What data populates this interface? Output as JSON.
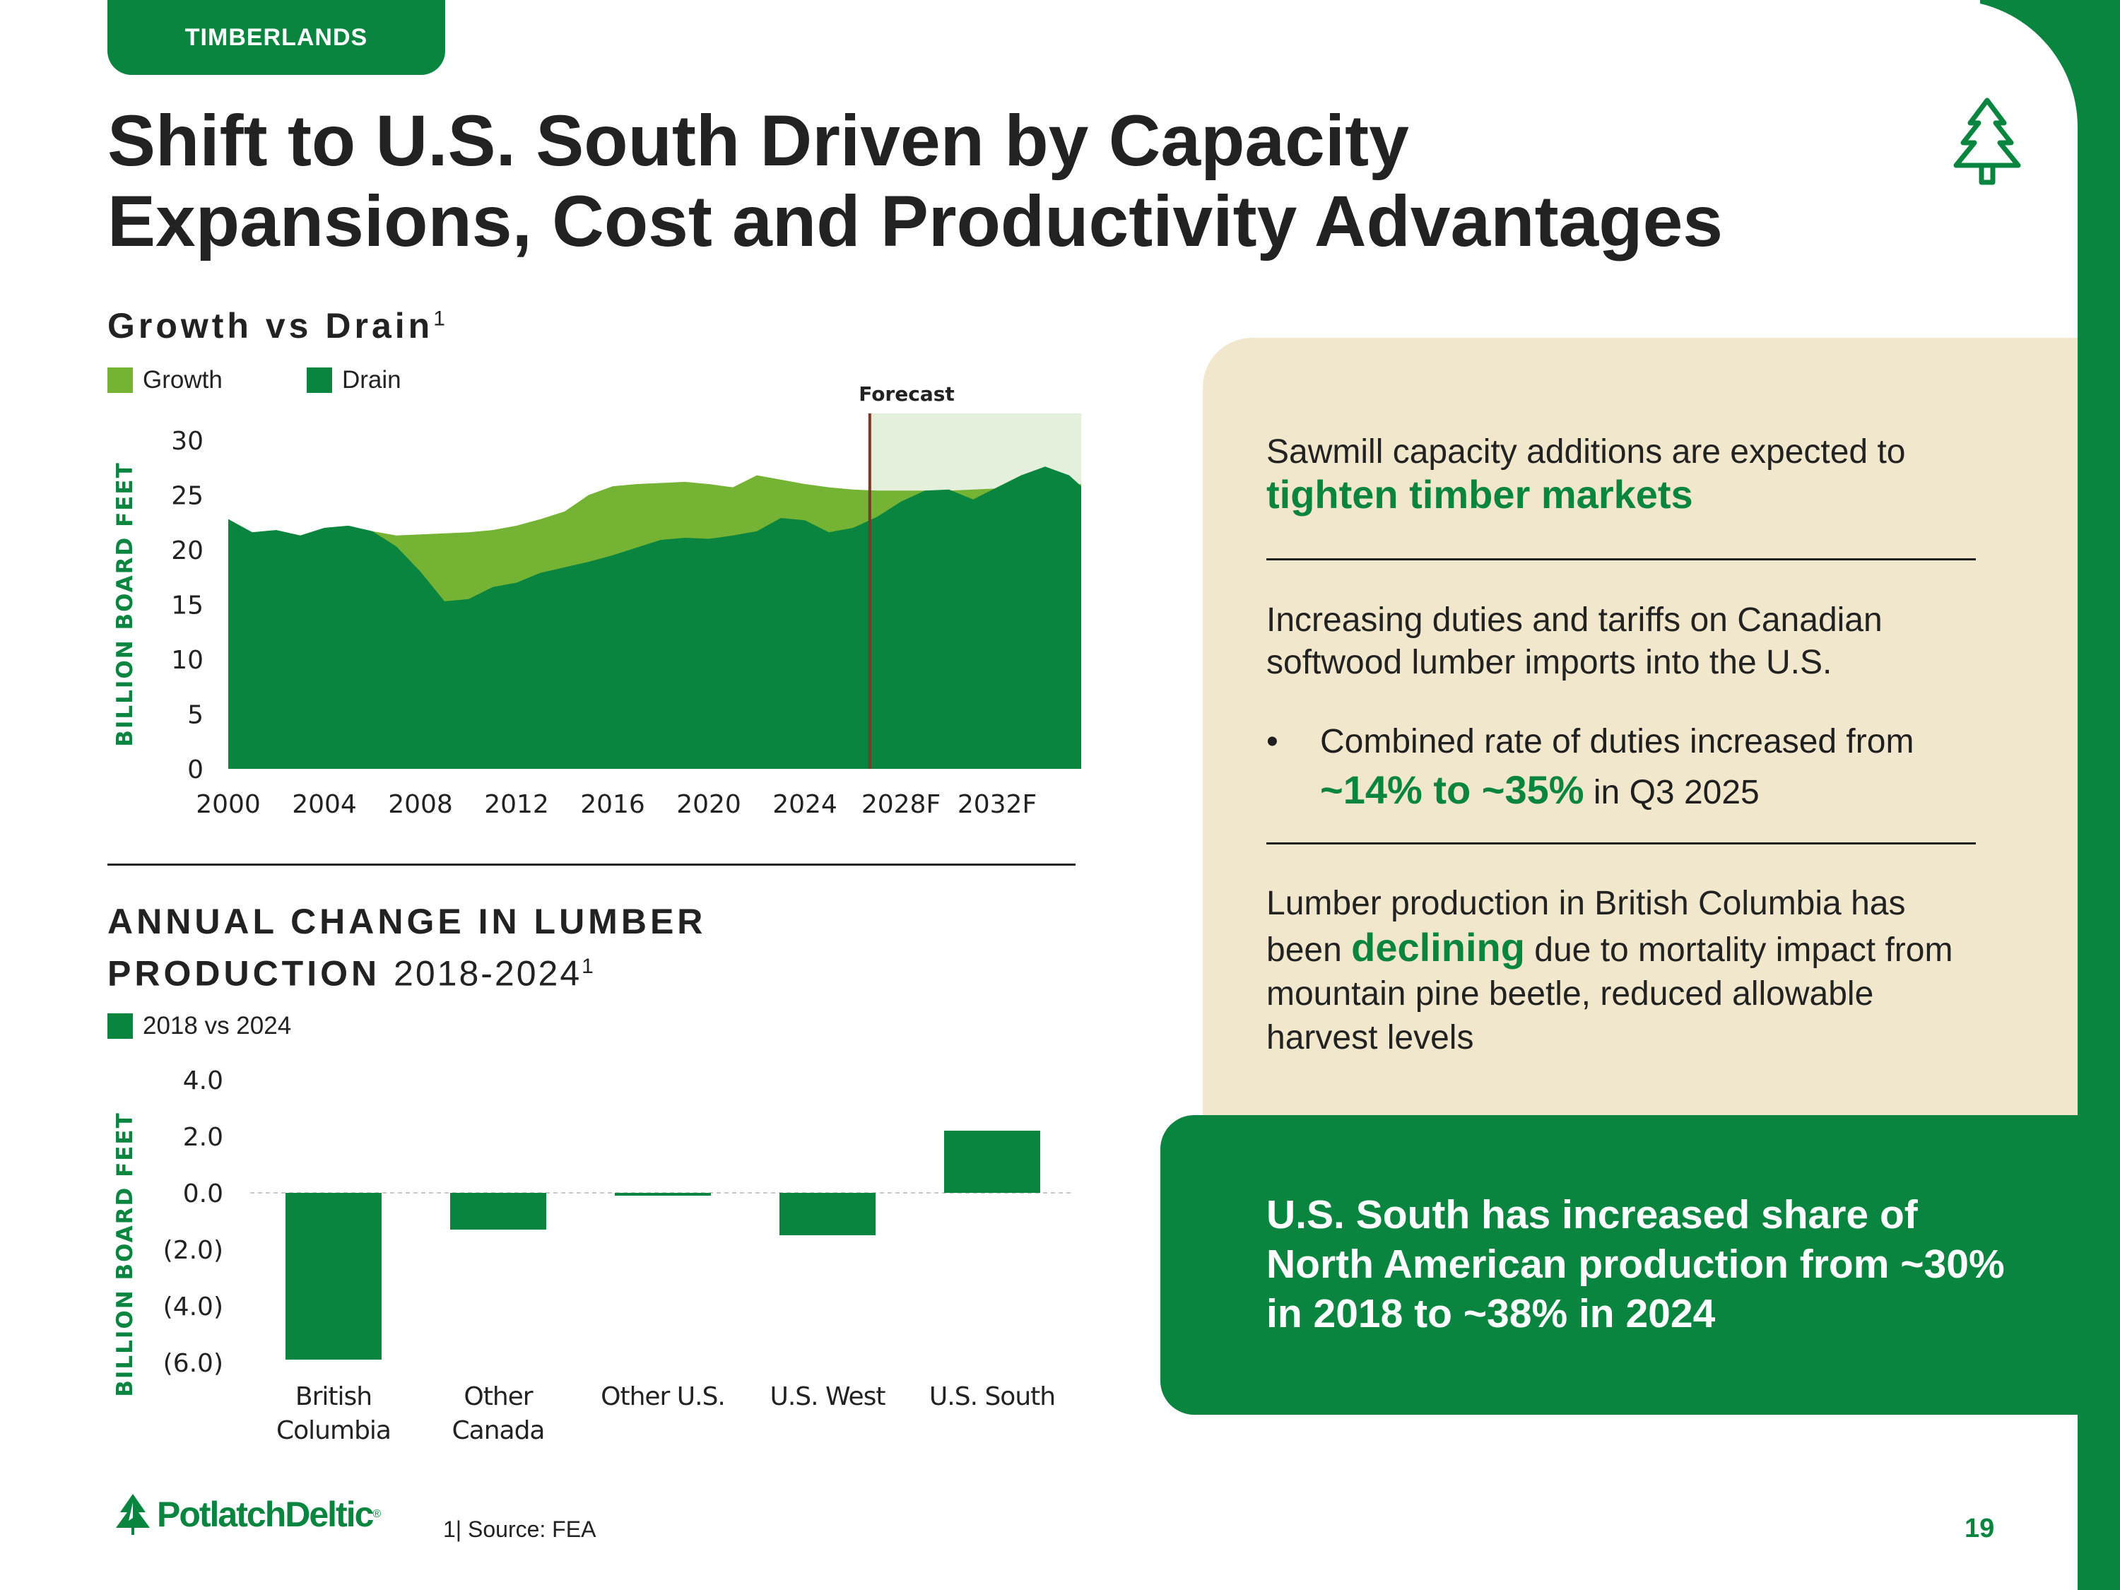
{
  "section_tab": "TIMBERLANDS",
  "title": {
    "line1": "Shift to U.S. South Driven by Capacity",
    "line2": "Expansions, Cost and Productivity Advantages"
  },
  "colors": {
    "growth": "#74b334",
    "drain": "#0a8540",
    "forecast_shade": "#e4efdc",
    "forecast_line": "#7a3a26",
    "panel": "#f1e7cc"
  },
  "chart1": {
    "heading": "Growth vs Drain",
    "heading_sup": "1",
    "legend_growth": "Growth",
    "legend_drain": "Drain",
    "forecast_label": "Forecast",
    "ylabel": "BILLION BOARD FEET"
  },
  "chart2": {
    "heading_line1": "ANNUAL CHANGE IN LUMBER",
    "heading_line2_bold": "PRODUCTION",
    "heading_line2_light": "2018-2024",
    "heading_sup": "1",
    "legend": "2018 vs 2024",
    "ylabel": "BILLION BOARD FEET"
  },
  "chart_data": [
    {
      "type": "area",
      "title": "Growth vs Drain",
      "ylabel": "BILLION BOARD FEET",
      "ylim": [
        0,
        30
      ],
      "yticks": [
        0,
        5,
        10,
        15,
        20,
        25,
        30
      ],
      "xlim": [
        2000,
        2035.5
      ],
      "x_tick_values": [
        2000,
        2004,
        2008,
        2012,
        2016,
        2020,
        2024,
        2028,
        2032
      ],
      "x_tick_labels": [
        "2000",
        "2004",
        "2008",
        "2012",
        "2016",
        "2020",
        "2024",
        "2028F",
        "2032F"
      ],
      "forecast_start": 2026.7,
      "x": [
        2000,
        2001,
        2002,
        2003,
        2004,
        2005,
        2006,
        2007,
        2008,
        2009,
        2010,
        2011,
        2012,
        2013,
        2014,
        2015,
        2016,
        2017,
        2018,
        2019,
        2020,
        2021,
        2022,
        2023,
        2024,
        2025,
        2026,
        2027,
        2028,
        2029,
        2030,
        2031,
        2032,
        2033,
        2034,
        2035,
        2035.5
      ],
      "series": [
        {
          "name": "Growth",
          "values": [
            22.8,
            21.6,
            21.8,
            21.3,
            22.0,
            22.2,
            21.7,
            21.3,
            21.4,
            21.5,
            21.6,
            21.8,
            22.2,
            22.8,
            23.5,
            25.0,
            25.8,
            26.0,
            26.1,
            26.2,
            26.0,
            25.7,
            26.8,
            26.4,
            26.0,
            25.7,
            25.5,
            25.4,
            25.4,
            25.4,
            25.4,
            25.5,
            25.6,
            25.7,
            25.8,
            25.9,
            26.0
          ]
        },
        {
          "name": "Drain",
          "values": [
            22.8,
            21.6,
            21.8,
            21.3,
            22.0,
            22.2,
            21.7,
            20.3,
            18.0,
            15.3,
            15.5,
            16.6,
            17.0,
            17.9,
            18.4,
            18.9,
            19.5,
            20.2,
            20.9,
            21.1,
            21.0,
            21.3,
            21.7,
            22.9,
            22.7,
            21.6,
            22.0,
            23.0,
            24.4,
            25.4,
            25.5,
            24.6,
            25.7,
            26.8,
            27.6,
            26.8,
            25.8
          ]
        }
      ]
    },
    {
      "type": "bar",
      "title": "ANNUAL CHANGE IN LUMBER PRODUCTION 2018-2024",
      "ylabel": "BILLION BOARD FEET",
      "ylim": [
        -6.0,
        4.0
      ],
      "yticks": [
        4,
        2,
        0,
        -2,
        -4,
        -6
      ],
      "ytick_labels": [
        "4.0",
        "2.0",
        "0.0",
        "(2.0)",
        "(4.0)",
        "(6.0)"
      ],
      "categories": [
        [
          "British",
          "Columbia"
        ],
        [
          "Other",
          "Canada"
        ],
        [
          "Other U.S."
        ],
        [
          "U.S. West"
        ],
        [
          "U.S. South"
        ]
      ],
      "series": [
        {
          "name": "2018 vs 2024",
          "values": [
            -5.9,
            -1.3,
            -0.1,
            -1.5,
            2.2
          ]
        }
      ]
    }
  ],
  "panel": {
    "p1_text": "Sawmill capacity additions are expected to",
    "p1_highlight": "tighten timber markets",
    "p2_text": "Increasing duties and tariffs on Canadian softwood lumber imports into the U.S.",
    "bullet_symbol": "•",
    "bullet_pre": "Combined rate of duties increased from",
    "bullet_highlight": "~14% to ~35%",
    "bullet_post": "in Q3 2025",
    "p3_pre": "Lumber production in British Columbia has been",
    "p3_highlight": "declining",
    "p3_post": "due to mortality impact from mountain pine beetle, reduced allowable harvest levels"
  },
  "callout": "U.S. South has increased share of North American production from ~30% in 2018 to ~38% in 2024",
  "footer": {
    "brand": "PotlatchDeltic",
    "brand_mark": "®",
    "source": "1| Source: FEA",
    "page_number": "19"
  }
}
